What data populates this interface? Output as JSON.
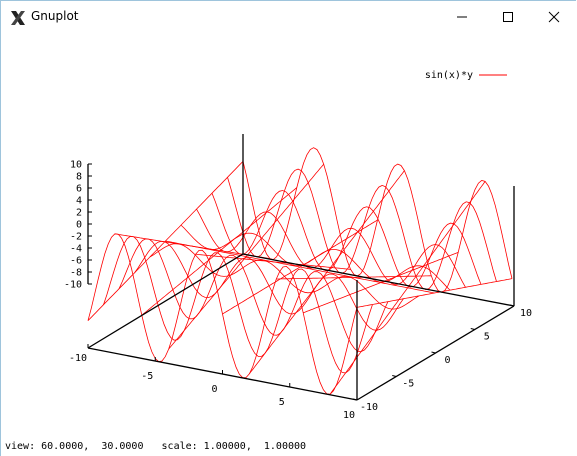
{
  "window": {
    "title": "Gnuplot",
    "icons": {
      "app": "gnuplot-x-icon",
      "minimize": "minimize-icon",
      "maximize": "maximize-icon",
      "close": "close-icon"
    }
  },
  "status_line": {
    "text": "view: 60.0000,  30.0000   scale: 1.00000,  1.00000"
  },
  "chart_data": {
    "type": "surface",
    "function": "sin(x)*y",
    "legend": [
      {
        "name": "sin(x)*y",
        "color": "#ff0000"
      }
    ],
    "legend_position": "top-right",
    "x_range": [
      -10,
      10
    ],
    "y_range": [
      -10,
      10
    ],
    "z_range": [
      -10,
      10
    ],
    "x_ticks": [
      "-10",
      "-5",
      "0",
      "5",
      "10"
    ],
    "y_ticks": [
      "10",
      "5",
      "0",
      "-5",
      "-10"
    ],
    "z_ticks": [
      "10",
      "8",
      "6",
      "4",
      "2",
      "0",
      "-2",
      "-4",
      "-6",
      "-8",
      "-10"
    ],
    "view": {
      "rot_x": 60,
      "rot_z": 30
    },
    "line_color": "#ff0000",
    "grid": false
  }
}
